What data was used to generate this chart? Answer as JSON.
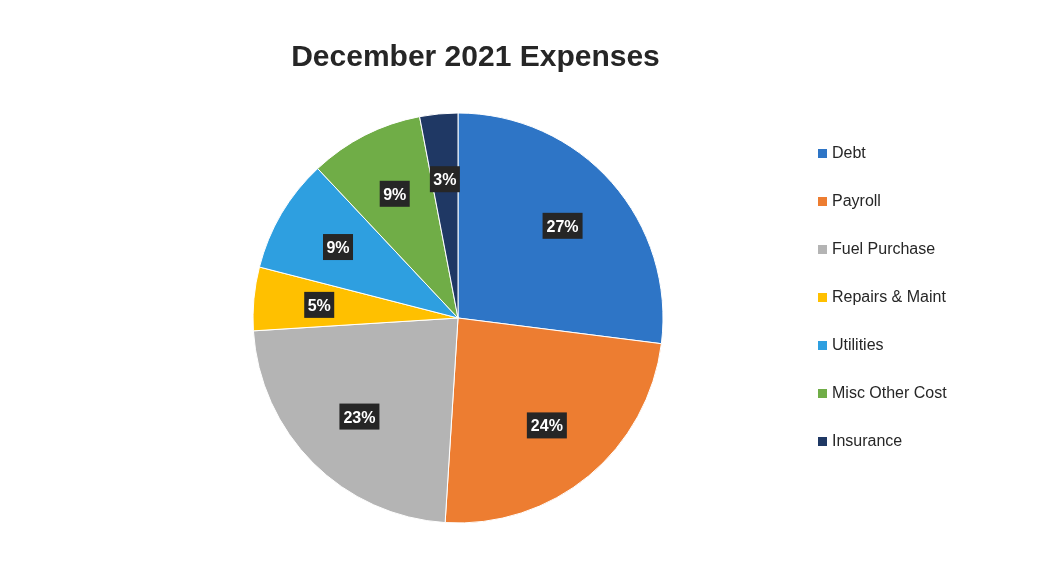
{
  "chart_data": {
    "type": "pie",
    "title": "December 2021 Expenses",
    "categories": [
      "Debt",
      "Payroll",
      "Fuel Purchase",
      "Repairs & Maint",
      "Utilities",
      "Misc Other Cost",
      "Insurance"
    ],
    "values": [
      27,
      24,
      23,
      5,
      9,
      9,
      3
    ],
    "colors": [
      "#2e75c6",
      "#ed7d31",
      "#b4b4b4",
      "#ffc000",
      "#2e9fe0",
      "#70ad47",
      "#1f3864"
    ],
    "value_labels": [
      "27%",
      "24%",
      "23%",
      "5%",
      "9%",
      "9%",
      "3%"
    ],
    "legend": "right"
  }
}
